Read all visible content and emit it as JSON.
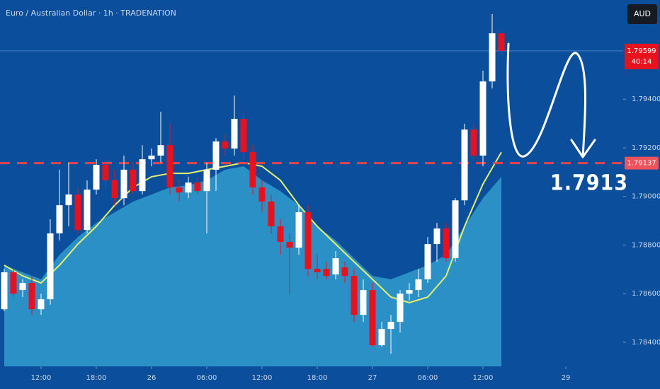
{
  "chart_data": {
    "type": "candlestick",
    "title": "Euro / Australian Dollar · 1h · TRADENATION",
    "currency": "AUD",
    "xlim": [
      -4.46,
      63.23
    ],
    "ylim": [
      1.78301,
      1.79808
    ],
    "xticks": [
      {
        "value": 0,
        "label": "12:00"
      },
      {
        "value": 6,
        "label": "18:00"
      },
      {
        "value": 12,
        "label": "26"
      },
      {
        "value": 18,
        "label": "06:00"
      },
      {
        "value": 24,
        "label": "12:00"
      },
      {
        "value": 30,
        "label": "18:00"
      },
      {
        "value": 36,
        "label": "27"
      },
      {
        "value": 42,
        "label": "06:00"
      },
      {
        "value": 48,
        "label": "12:00"
      },
      {
        "value": 57,
        "label": "29"
      }
    ],
    "yticks": [
      {
        "value": 1.784,
        "label": "1.78400"
      },
      {
        "value": 1.786,
        "label": "1.78600"
      },
      {
        "value": 1.788,
        "label": "1.78800"
      },
      {
        "value": 1.79,
        "label": "1.79000"
      },
      {
        "value": 1.792,
        "label": "1.79200"
      },
      {
        "value": 1.794,
        "label": "1.79400"
      }
    ],
    "up_color": "#ffffff",
    "down_color": "#e8121e",
    "x": [
      -4,
      -3,
      -2,
      -1,
      0,
      1,
      2,
      3,
      4,
      5,
      6,
      7,
      8,
      9,
      10,
      11,
      12,
      13,
      14,
      15,
      16,
      17,
      18,
      19,
      20,
      21,
      22,
      23,
      24,
      25,
      26,
      27,
      28,
      29,
      30,
      31,
      32,
      33,
      34,
      35,
      36,
      37,
      38,
      39,
      40,
      41,
      42,
      43,
      44,
      45,
      46,
      47,
      48,
      49,
      50
    ],
    "open": [
      1.78536,
      1.78688,
      1.78615,
      1.78644,
      1.78536,
      1.78577,
      1.78848,
      1.78964,
      1.79008,
      1.78862,
      1.79028,
      1.7913,
      1.79066,
      1.78993,
      1.7911,
      1.79022,
      1.79153,
      1.79168,
      1.79211,
      1.79037,
      1.79016,
      1.79057,
      1.79022,
      1.7911,
      1.79226,
      1.79197,
      1.79319,
      1.79182,
      1.79037,
      1.78979,
      1.78877,
      1.78813,
      1.78789,
      1.78935,
      1.78702,
      1.78702,
      1.78679,
      1.78708,
      1.78673,
      1.78513,
      1.78615,
      1.78388,
      1.78455,
      1.78484,
      1.786,
      1.78615,
      1.78659,
      1.78804,
      1.78868,
      1.78746,
      1.78984,
      1.79275,
      1.79168,
      1.79473,
      1.79671
    ],
    "high": [
      1.78702,
      1.78702,
      1.78659,
      1.78673,
      1.786,
      1.78906,
      1.7911,
      1.79139,
      1.79037,
      1.79066,
      1.79153,
      1.79153,
      1.7911,
      1.79168,
      1.79139,
      1.79211,
      1.79197,
      1.79348,
      1.79299,
      1.79066,
      1.79081,
      1.79081,
      1.79139,
      1.7924,
      1.79255,
      1.79415,
      1.79349,
      1.79211,
      1.79066,
      1.79008,
      1.78906,
      1.78848,
      1.78964,
      1.78964,
      1.7876,
      1.78731,
      1.78775,
      1.78731,
      1.78702,
      1.78659,
      1.78644,
      1.78484,
      1.78513,
      1.78615,
      1.78644,
      1.78702,
      1.78833,
      1.78891,
      1.78891,
      1.78993,
      1.79299,
      1.79299,
      1.79517,
      1.7975,
      1.79686
    ],
    "low": [
      1.78528,
      1.78586,
      1.78586,
      1.78513,
      1.78513,
      1.78555,
      1.78819,
      1.78877,
      1.78848,
      1.78848,
      1.79008,
      1.79037,
      1.78964,
      1.78964,
      1.79008,
      1.79008,
      1.79124,
      1.79139,
      1.79008,
      1.78979,
      1.78993,
      1.79008,
      1.78848,
      1.79022,
      1.79168,
      1.79168,
      1.79153,
      1.79008,
      1.78935,
      1.78848,
      1.7876,
      1.786,
      1.7876,
      1.78673,
      1.78659,
      1.78659,
      1.78659,
      1.78644,
      1.78484,
      1.78484,
      1.78382,
      1.78382,
      1.78353,
      1.7844,
      1.78571,
      1.78586,
      1.78644,
      1.78731,
      1.78731,
      1.78731,
      1.78964,
      1.79153,
      1.79124,
      1.79444,
      1.79584
    ],
    "close": [
      1.78688,
      1.786,
      1.78644,
      1.78536,
      1.78577,
      1.78848,
      1.78964,
      1.79008,
      1.78862,
      1.79028,
      1.7913,
      1.79066,
      1.78993,
      1.7911,
      1.79022,
      1.79153,
      1.79168,
      1.79211,
      1.79037,
      1.79016,
      1.79057,
      1.79022,
      1.7911,
      1.79226,
      1.79197,
      1.79319,
      1.79182,
      1.79037,
      1.78979,
      1.78877,
      1.78813,
      1.78789,
      1.78935,
      1.78702,
      1.78688,
      1.78673,
      1.78746,
      1.78673,
      1.78513,
      1.78615,
      1.78388,
      1.78455,
      1.78484,
      1.786,
      1.78615,
      1.78659,
      1.78804,
      1.78868,
      1.78746,
      1.78984,
      1.79275,
      1.79168,
      1.79473,
      1.79671,
      1.79599
    ],
    "series": [
      {
        "type": "area",
        "color": "#2a90c5",
        "x": [
          -4,
          -2,
          0,
          2,
          4,
          6,
          8,
          10,
          12,
          14,
          16,
          18,
          20,
          22,
          24,
          26,
          28,
          30,
          32,
          34,
          36,
          38,
          40,
          42,
          44,
          46,
          48,
          50
        ],
        "values": [
          1.78717,
          1.78688,
          1.78659,
          1.7876,
          1.78833,
          1.78891,
          1.78935,
          1.78979,
          1.79008,
          1.79037,
          1.79046,
          1.79066,
          1.7911,
          1.79124,
          1.79066,
          1.79022,
          1.78964,
          1.78877,
          1.78819,
          1.78746,
          1.78673,
          1.78659,
          1.78688,
          1.78717,
          1.7876,
          1.78877,
          1.78993,
          1.79081
        ]
      },
      {
        "type": "line",
        "color": "#e3ee6c",
        "x": [
          -4,
          -2,
          0,
          2,
          4,
          6,
          8,
          10,
          12,
          14,
          16,
          18,
          20,
          22,
          24,
          26,
          28,
          30,
          32,
          34,
          36,
          38,
          40,
          42,
          44,
          46,
          48,
          50
        ],
        "values": [
          1.78717,
          1.78673,
          1.78644,
          1.78717,
          1.78804,
          1.78877,
          1.78964,
          1.79037,
          1.79081,
          1.79095,
          1.79095,
          1.7911,
          1.79124,
          1.79139,
          1.79124,
          1.79066,
          1.78964,
          1.78877,
          1.78804,
          1.78731,
          1.78659,
          1.78586,
          1.78563,
          1.78586,
          1.78673,
          1.78877,
          1.79051,
          1.79182
        ]
      }
    ],
    "level": {
      "value": 1.79137,
      "label": "1.79137",
      "color": "#e8424a"
    },
    "last_price": 1.79599,
    "countdown": "40:14",
    "annotation": "1.7913"
  }
}
